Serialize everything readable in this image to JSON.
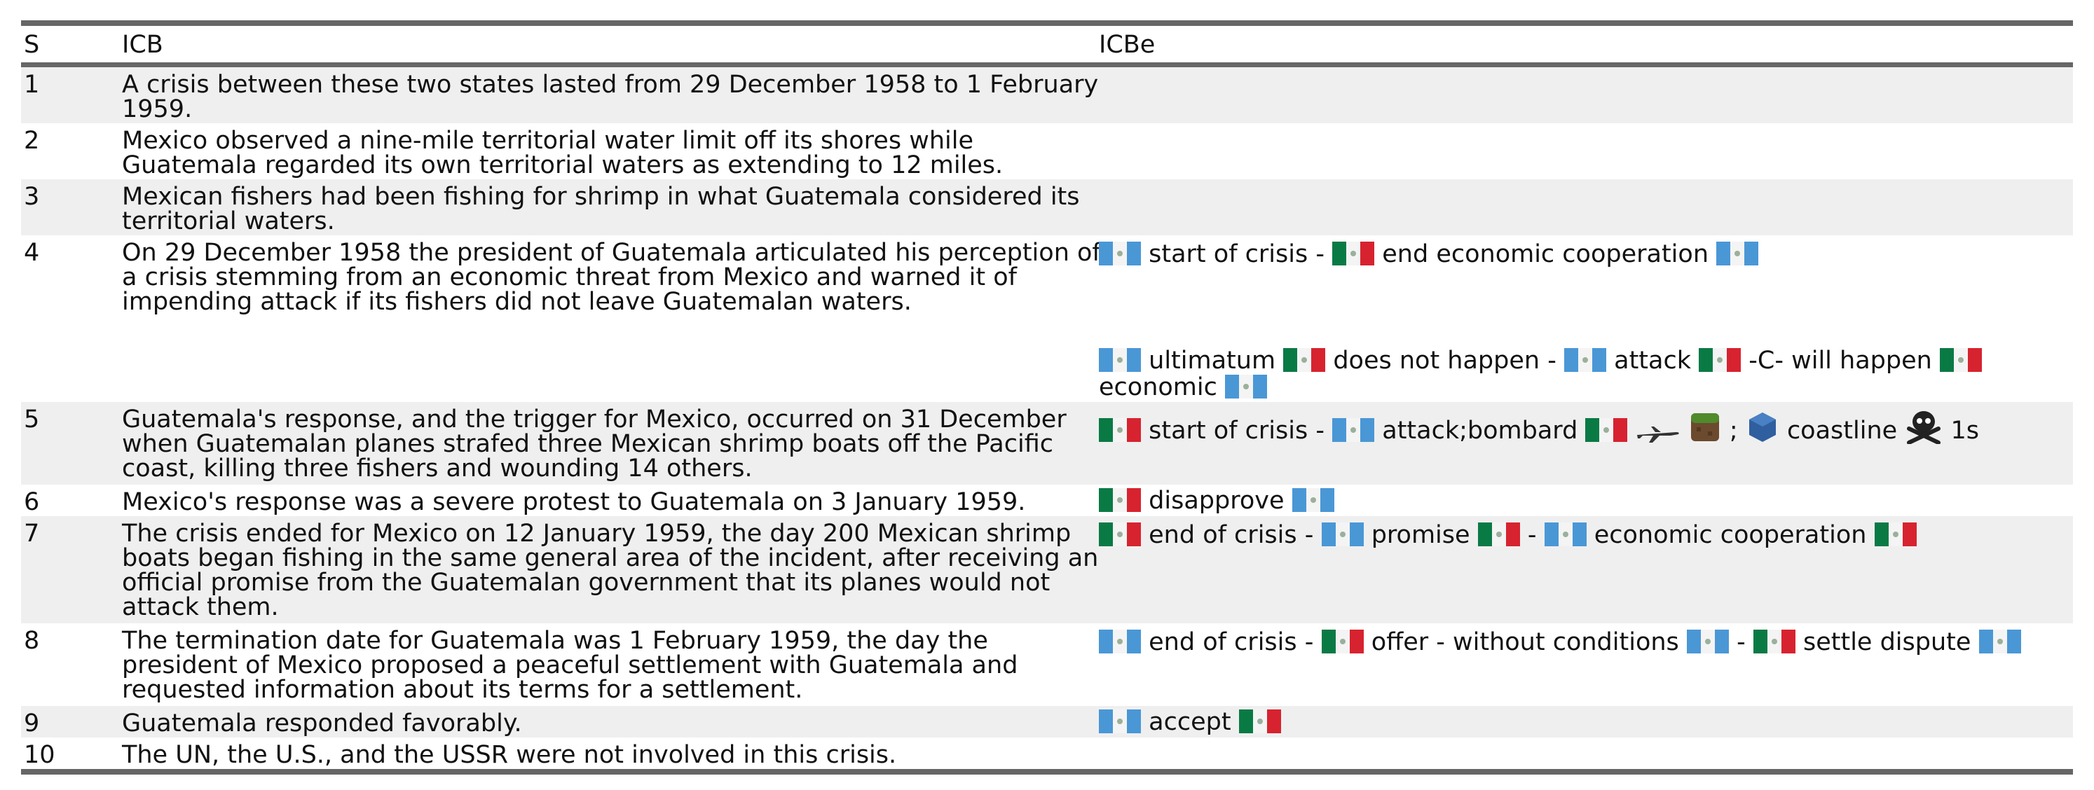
{
  "headers": {
    "s": "S",
    "icb": "ICB",
    "icbe": "ICBe"
  },
  "rows": [
    {
      "s": "1",
      "icb": "A crisis between these two states lasted from 29 December 1958 to 1 February 1959."
    },
    {
      "s": "2",
      "icb": "Mexico observed a nine-mile territorial water limit off its shores while Guatemala regarded its own territorial waters as extending to 12 miles."
    },
    {
      "s": "3",
      "icb": "Mexican fishers had been fishing for shrimp in what Guatemala considered its territorial waters."
    },
    {
      "s": "4",
      "icb": "On 29 December 1958 the president of Guatemala articulated his perception of a crisis stemming from an economic threat from Mexico and warned it of impending attack if its fishers did not leave Guatemalan waters."
    },
    {
      "s": "5",
      "icb": "Guatemala's response, and the trigger for Mexico, occurred on 31 December when Guatemalan planes strafed three Mexican shrimp boats off the Pacific coast, killing three fishers and wounding 14 others."
    },
    {
      "s": "6",
      "icb": "Mexico's response was a severe protest to Guatemala on 3 January 1959."
    },
    {
      "s": "7",
      "icb": "The crisis ended for Mexico on 12 January 1959, the day 200 Mexican shrimp boats began fishing in the same general area of the incident, after receiving an official promise from the Guatemalan government that its planes would not attack them."
    },
    {
      "s": "8",
      "icb": "The termination date for Guatemala was 1 February 1959, the day the president of Mexico proposed a peaceful settlement with Guatemala and requested information about its terms for a settlement."
    },
    {
      "s": "9",
      "icb": "Guatemala responded favorably."
    },
    {
      "s": "10",
      "icb": "The UN, the U.S., and the USSR were not involved in this crisis."
    }
  ],
  "events": {
    "r4a": [
      "start of crisis",
      "-",
      "end economic cooperation"
    ],
    "r4b": [
      "ultimatum",
      "does not happen",
      "-",
      "attack",
      "-C- will happen",
      "economic"
    ],
    "r5": [
      "start of crisis",
      "-",
      "attack;bombard",
      ";",
      "coastline",
      "1s"
    ],
    "r6": [
      "disapprove"
    ],
    "r7": [
      "end of crisis",
      "-",
      "promise",
      "-",
      "economic cooperation"
    ],
    "r8": [
      "end of crisis",
      "-",
      "offer - without conditions",
      "-",
      "settle dispute"
    ],
    "r9": [
      "accept"
    ]
  },
  "colors": {
    "guatemala_flag": "#4a97d6",
    "mexico_flag_green": "#0a7a45",
    "mexico_flag_red": "#d7232f",
    "row_shade": "#efefef",
    "rule": "#666666"
  }
}
